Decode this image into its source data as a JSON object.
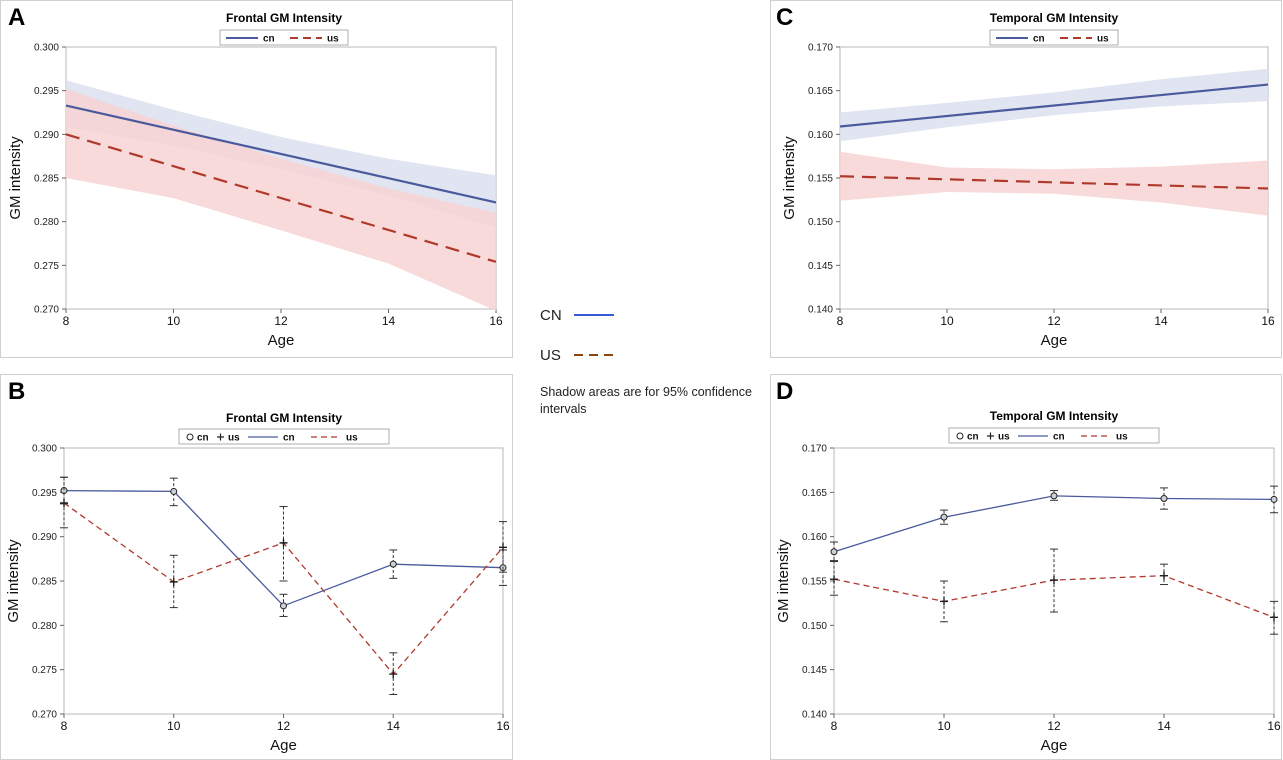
{
  "legend_center": {
    "cn_label": "CN",
    "us_label": "US",
    "cn_color": "#3a5bd6",
    "us_color": "#8b4513",
    "note": "Shadow areas are for  95% confidence intervals"
  },
  "colors": {
    "cn": "#4a5a9c",
    "us": "#b0392b",
    "cn_band": "#dcdfee",
    "us_band": "#f8d3d3"
  },
  "panels": {
    "A": {
      "letter": "A"
    },
    "B": {
      "letter": "B"
    },
    "C": {
      "letter": "C"
    },
    "D": {
      "letter": "D"
    }
  },
  "chart_data": [
    {
      "id": "A",
      "type": "line",
      "title": "Frontal GM Intensity",
      "xlabel": "Age",
      "ylabel": "GM intensity",
      "xlim": [
        8,
        16
      ],
      "ylim": [
        0.27,
        0.3
      ],
      "xticks": [
        "8",
        "10",
        "12",
        "14",
        "16"
      ],
      "yticks": [
        "0.270",
        "0.275",
        "0.280",
        "0.285",
        "0.290",
        "0.295",
        "0.300"
      ],
      "legend": [
        "cn",
        "us"
      ],
      "series": [
        {
          "name": "cn",
          "x": [
            8,
            16
          ],
          "y": [
            0.2933,
            0.2822
          ],
          "ci_x": [
            8,
            10,
            12,
            14,
            16
          ],
          "ci_lower": [
            0.2908,
            0.2887,
            0.286,
            0.283,
            0.2793
          ],
          "ci_upper": [
            0.2962,
            0.2928,
            0.2897,
            0.2872,
            0.2853
          ]
        },
        {
          "name": "us",
          "x": [
            8,
            16
          ],
          "y": [
            0.29,
            0.2754
          ],
          "ci_x": [
            8,
            10,
            12,
            14,
            16
          ],
          "ci_lower": [
            0.285,
            0.2827,
            0.279,
            0.2752,
            0.2698
          ],
          "ci_upper": [
            0.2952,
            0.291,
            0.2872,
            0.2838,
            0.281
          ]
        }
      ]
    },
    {
      "id": "B",
      "type": "line",
      "title": "Frontal GM Intensity",
      "xlabel": "Age",
      "ylabel": "GM intensity",
      "xlim": [
        8,
        16
      ],
      "ylim": [
        0.27,
        0.3
      ],
      "xticks": [
        "8",
        "10",
        "12",
        "14",
        "16"
      ],
      "yticks": [
        "0.270",
        "0.275",
        "0.280",
        "0.285",
        "0.290",
        "0.295",
        "0.300"
      ],
      "legend": [
        "cn",
        "us",
        "cn",
        "us"
      ],
      "series": [
        {
          "name": "cn",
          "x": [
            8,
            10,
            12,
            14,
            16
          ],
          "y": [
            0.2952,
            0.2951,
            0.2822,
            0.2869,
            0.2865
          ],
          "err_lower": [
            0.2937,
            0.2935,
            0.281,
            0.2853,
            0.2845
          ],
          "err_upper": [
            0.2967,
            0.2966,
            0.2835,
            0.2885,
            0.2885
          ]
        },
        {
          "name": "us",
          "x": [
            8,
            10,
            12,
            14,
            16
          ],
          "y": [
            0.2938,
            0.2849,
            0.2893,
            0.2745,
            0.2888
          ],
          "err_lower": [
            0.291,
            0.282,
            0.285,
            0.2722,
            0.286
          ],
          "err_upper": [
            0.2967,
            0.2879,
            0.2934,
            0.2769,
            0.2917
          ]
        }
      ]
    },
    {
      "id": "C",
      "type": "line",
      "title": "Temporal GM Intensity",
      "xlabel": "Age",
      "ylabel": "GM intensity",
      "xlim": [
        8,
        16
      ],
      "ylim": [
        0.14,
        0.17
      ],
      "xticks": [
        "8",
        "10",
        "12",
        "14",
        "16"
      ],
      "yticks": [
        "0.140",
        "0.145",
        "0.150",
        "0.155",
        "0.160",
        "0.165",
        "0.170"
      ],
      "legend": [
        "cn",
        "us"
      ],
      "series": [
        {
          "name": "cn",
          "x": [
            8,
            16
          ],
          "y": [
            0.1609,
            0.1657
          ],
          "ci_x": [
            8,
            10,
            12,
            14,
            16
          ],
          "ci_lower": [
            0.1592,
            0.1608,
            0.1622,
            0.1632,
            0.1638
          ],
          "ci_upper": [
            0.1625,
            0.1636,
            0.1648,
            0.1663,
            0.1675
          ]
        },
        {
          "name": "us",
          "x": [
            8,
            16
          ],
          "y": [
            0.1552,
            0.1538
          ],
          "ci_x": [
            8,
            10,
            12,
            14,
            16
          ],
          "ci_lower": [
            0.1524,
            0.1534,
            0.1532,
            0.1522,
            0.1507
          ],
          "ci_upper": [
            0.158,
            0.1562,
            0.156,
            0.1563,
            0.157
          ]
        }
      ]
    },
    {
      "id": "D",
      "type": "line",
      "title": "Temporal GM Intensity",
      "xlabel": "Age",
      "ylabel": "GM intensity",
      "xlim": [
        8,
        16
      ],
      "ylim": [
        0.14,
        0.17
      ],
      "xticks": [
        "8",
        "10",
        "12",
        "14",
        "16"
      ],
      "yticks": [
        "0.140",
        "0.145",
        "0.150",
        "0.155",
        "0.160",
        "0.165",
        "0.170"
      ],
      "legend": [
        "cn",
        "us",
        "cn",
        "us"
      ],
      "series": [
        {
          "name": "cn",
          "x": [
            8,
            10,
            12,
            14,
            16
          ],
          "y": [
            0.1583,
            0.1622,
            0.1646,
            0.1643,
            0.1642
          ],
          "err_lower": [
            0.1572,
            0.1614,
            0.1641,
            0.1631,
            0.1627
          ],
          "err_upper": [
            0.1594,
            0.163,
            0.1652,
            0.1655,
            0.1657
          ]
        },
        {
          "name": "us",
          "x": [
            8,
            10,
            12,
            14,
            16
          ],
          "y": [
            0.1552,
            0.1527,
            0.1551,
            0.1556,
            0.1509
          ],
          "err_lower": [
            0.1534,
            0.1504,
            0.1515,
            0.1546,
            0.149
          ],
          "err_upper": [
            0.1573,
            0.155,
            0.1586,
            0.1569,
            0.1527
          ]
        }
      ]
    }
  ]
}
